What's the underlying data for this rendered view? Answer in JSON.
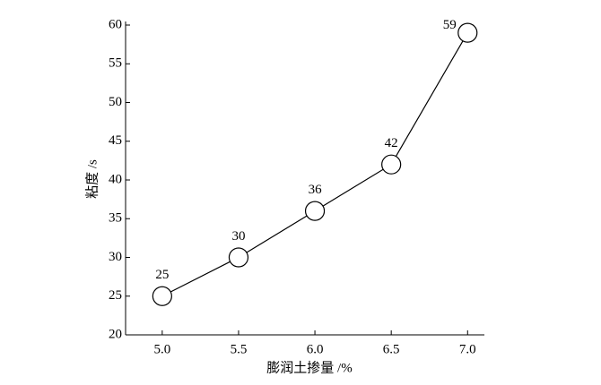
{
  "chart_data": {
    "type": "line",
    "x_label": "膨润土掺量 /%",
    "y_label": "粘度 /s",
    "x": [
      5.0,
      5.5,
      6.0,
      6.5,
      7.0
    ],
    "series": [
      {
        "color": "#000000",
        "values": [
          25,
          30,
          36,
          42,
          59
        ]
      }
    ],
    "xlim": [
      4.76,
      7.11
    ],
    "xticks": [
      {
        "value": 5,
        "label": "5.0"
      },
      {
        "value": 5.5,
        "label": "5.5"
      },
      {
        "value": 6,
        "label": "6.0"
      },
      {
        "value": 6.5,
        "label": "6.5"
      },
      {
        "value": 7,
        "label": "7.0"
      }
    ],
    "ylim": [
      20,
      60
    ],
    "yticks": [
      20,
      25,
      30,
      35,
      40,
      45,
      50,
      55,
      60
    ]
  }
}
